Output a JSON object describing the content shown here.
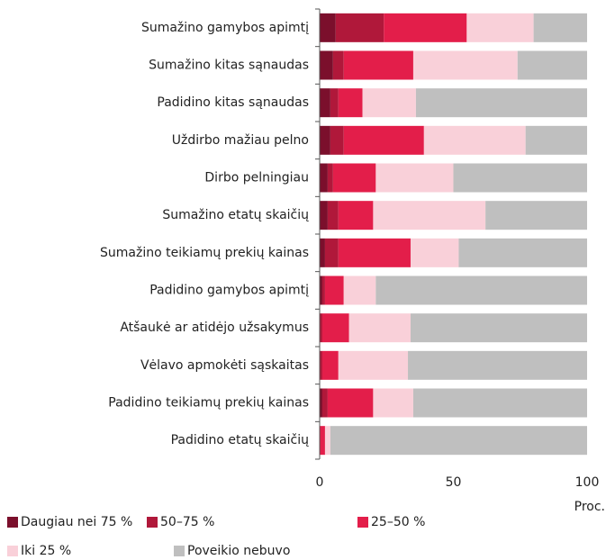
{
  "chart_data": {
    "type": "stacked_barh",
    "categories": [
      "Sumažino gamybos apimtį",
      "Sumažino kitas sąnaudas",
      "Padidino kitas sąnaudas",
      "Uždirbo mažiau pelno",
      "Dirbo pelningiau",
      "Sumažino etatų skaičių",
      "Sumažino teikiamų prekių kainas",
      "Padidino gamybos apimtį",
      "Atšaukė ar atidėjo užsakymus",
      "Vėlavo apmokėti sąskaitas",
      "Padidino teikiamų prekių kainas",
      "Padidino etatų skaičių"
    ],
    "series": [
      {
        "name": "Daugiau nei 75 %",
        "color": "#7b0f2c",
        "values": [
          6,
          5,
          4,
          4,
          3,
          3,
          2,
          1,
          0,
          0,
          1,
          0
        ]
      },
      {
        "name": "50–75 %",
        "color": "#b0183a",
        "values": [
          18,
          4,
          3,
          5,
          2,
          4,
          5,
          1,
          1,
          1,
          2,
          0
        ]
      },
      {
        "name": "25–50 %",
        "color": "#e31e4a",
        "values": [
          31,
          26,
          9,
          30,
          16,
          13,
          27,
          7,
          10,
          6,
          17,
          2
        ]
      },
      {
        "name": "Iki 25 %",
        "color": "#f9d0d9",
        "values": [
          25,
          39,
          20,
          38,
          29,
          42,
          18,
          12,
          23,
          26,
          15,
          2
        ]
      },
      {
        "name": "Poveikio nebuvo",
        "color": "#bfbfbf",
        "values": [
          20,
          26,
          64,
          23,
          50,
          38,
          48,
          79,
          66,
          67,
          65,
          96
        ]
      }
    ],
    "xlabel": "Proc.",
    "xlim": [
      0,
      100
    ],
    "xticks": [
      0,
      50,
      100
    ]
  }
}
